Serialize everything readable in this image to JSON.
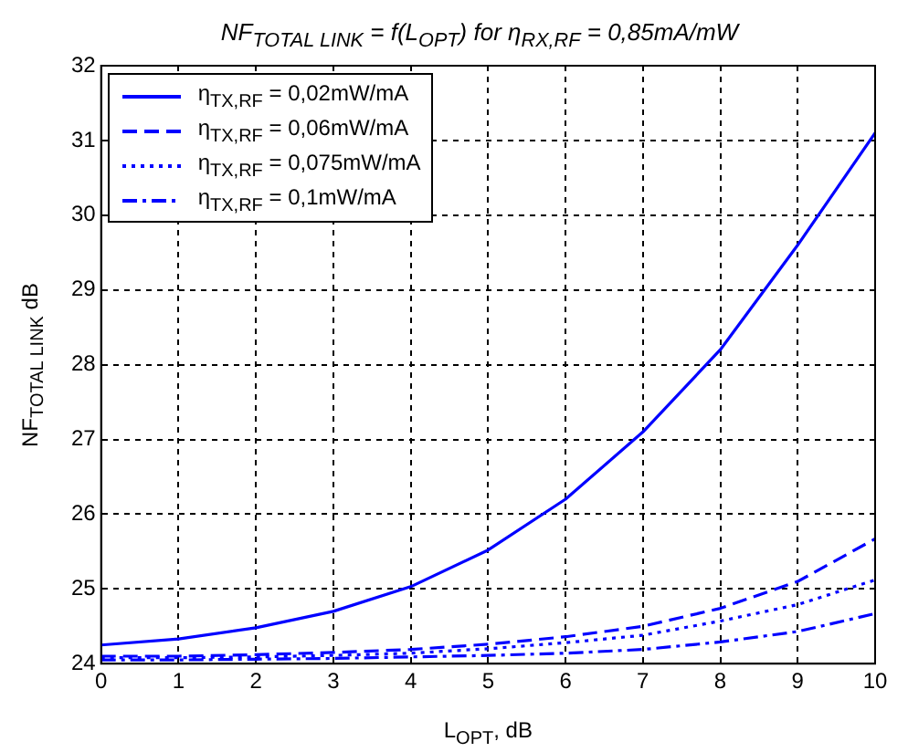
{
  "chart_data": {
    "type": "line",
    "title": "NF$_{TOTAL LINK}$ = f(L$_{OPT}$) for η$_{RX,RF}$ = 0,85mA/mW",
    "xlabel": "L$_{OPT}$, dB",
    "ylabel": "NF$_{TOTAL LINK}$ dB",
    "x": [
      0,
      1,
      2,
      3,
      4,
      5,
      6,
      7,
      8,
      9,
      10
    ],
    "series": [
      {
        "name": "η$_{TX,RF}$ = 0,02mW/mA",
        "color": "#0000ff",
        "line_style": "solid",
        "values": [
          24.25,
          24.33,
          24.48,
          24.7,
          25.03,
          25.52,
          26.2,
          27.1,
          28.2,
          29.6,
          31.1
        ]
      },
      {
        "name": "η$_{TX,RF}$ = 0,06mW/mA",
        "color": "#0000ff",
        "line_style": "dashed",
        "values": [
          24.1,
          24.1,
          24.12,
          24.15,
          24.19,
          24.26,
          24.36,
          24.5,
          24.74,
          25.1,
          25.67
        ]
      },
      {
        "name": "η$_{TX,RF}$ = 0,075mW/mA",
        "color": "#0000ff",
        "line_style": "dotted",
        "values": [
          24.08,
          24.08,
          24.09,
          24.11,
          24.14,
          24.2,
          24.28,
          24.38,
          24.57,
          24.79,
          25.12
        ]
      },
      {
        "name": "η$_{TX,RF}$ = 0,1mW/mA",
        "color": "#0000ff",
        "line_style": "dashdot",
        "values": [
          24.05,
          24.05,
          24.06,
          24.07,
          24.09,
          24.11,
          24.14,
          24.19,
          24.29,
          24.43,
          24.67
        ]
      }
    ],
    "xlim": [
      0,
      10
    ],
    "xticks": [
      0,
      1,
      2,
      3,
      4,
      5,
      6,
      7,
      8,
      9,
      10
    ],
    "ylim": [
      24,
      32
    ],
    "yticks": [
      24,
      25,
      26,
      27,
      28,
      29,
      30,
      31,
      32
    ],
    "grid": true,
    "legend": "top left",
    "marker": "none"
  }
}
